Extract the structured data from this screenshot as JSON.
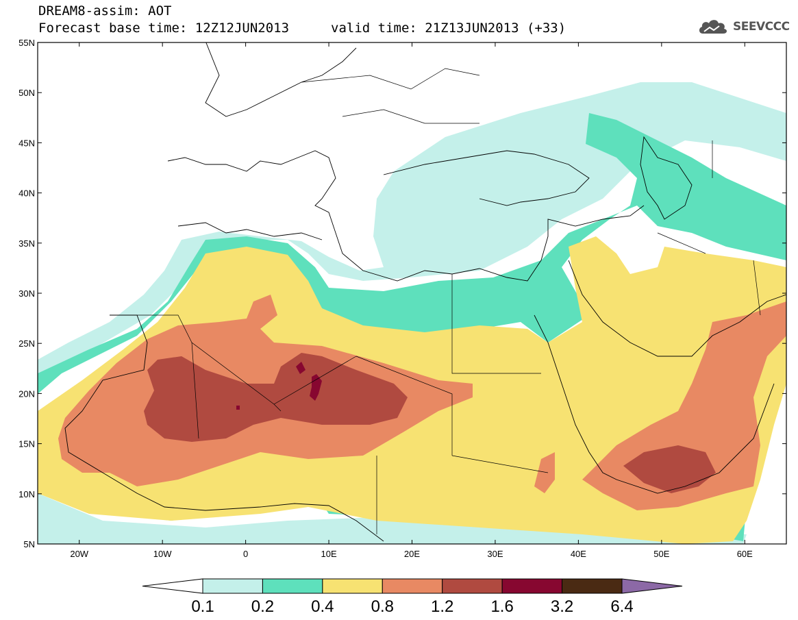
{
  "header": {
    "line1": "DREAM8-assim: AOT",
    "line2": "Forecast base time: 12Z12JUN2013",
    "valid": "valid time: 21Z13JUN2013 (+33)"
  },
  "brand": {
    "name": "SEEVCCC",
    "icon": "cloud-icon",
    "color": "#555555"
  },
  "map": {
    "lat_range": [
      5,
      55
    ],
    "lon_range": [
      -25,
      65
    ],
    "lat_labels": [
      "55N",
      "50N",
      "45N",
      "40N",
      "35N",
      "30N",
      "25N",
      "20N",
      "15N",
      "10N",
      "5N"
    ],
    "lon_labels": [
      "20W",
      "10W",
      "0",
      "10E",
      "20E",
      "30E",
      "40E",
      "50E",
      "60E"
    ],
    "lat_values": [
      55,
      50,
      45,
      40,
      35,
      30,
      25,
      20,
      15,
      10,
      5
    ],
    "lon_values": [
      -20,
      -10,
      0,
      10,
      20,
      30,
      40,
      50,
      60
    ],
    "field": "AOT"
  },
  "colorbar": {
    "colors": [
      "#ffffff",
      "#c4f0ea",
      "#5ee0bc",
      "#f7e272",
      "#e88963",
      "#b04a40",
      "#870730",
      "#4a2a13",
      "#8c69a6"
    ],
    "bounds": [
      "0.1",
      "0.2",
      "0.4",
      "0.8",
      "1.2",
      "1.6",
      "3.2",
      "6.4"
    ]
  }
}
